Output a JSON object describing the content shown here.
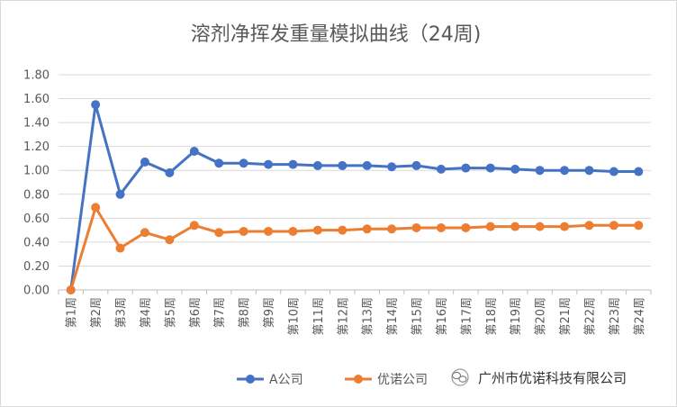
{
  "chart_data": {
    "type": "line",
    "title": "溶剂净挥发重量模拟曲线（24周)",
    "categories": [
      "第1周",
      "第2周",
      "第3周",
      "第4周",
      "第5周",
      "第6周",
      "第7周",
      "第8周",
      "第9周",
      "第10周",
      "第11周",
      "第12周",
      "第13周",
      "第14周",
      "第15周",
      "第16周",
      "第17周",
      "第18周",
      "第19周",
      "第20周",
      "第21周",
      "第22周",
      "第23周",
      "第24周"
    ],
    "ylim": [
      0,
      1.8
    ],
    "yticks": [
      "0.00",
      "0.20",
      "0.40",
      "0.60",
      "0.80",
      "1.00",
      "1.20",
      "1.40",
      "1.60",
      "1.80"
    ],
    "grid": true,
    "legend_position": "bottom-right",
    "series": [
      {
        "name": "A公司",
        "color": "#4472c4",
        "values": [
          0.0,
          1.55,
          0.8,
          1.07,
          0.98,
          1.16,
          1.06,
          1.06,
          1.05,
          1.05,
          1.04,
          1.04,
          1.04,
          1.03,
          1.04,
          1.01,
          1.02,
          1.02,
          1.01,
          1.0,
          1.0,
          1.0,
          0.99,
          0.99
        ]
      },
      {
        "name": "优诺公司",
        "color": "#ed7d31",
        "values": [
          0.0,
          0.69,
          0.35,
          0.48,
          0.42,
          0.54,
          0.48,
          0.49,
          0.49,
          0.49,
          0.5,
          0.5,
          0.51,
          0.51,
          0.52,
          0.52,
          0.52,
          0.53,
          0.53,
          0.53,
          0.53,
          0.54,
          0.54,
          0.54
        ]
      }
    ]
  },
  "watermark": {
    "text": "广州市优诺科技有限公司",
    "icon": "wechat-icon"
  }
}
